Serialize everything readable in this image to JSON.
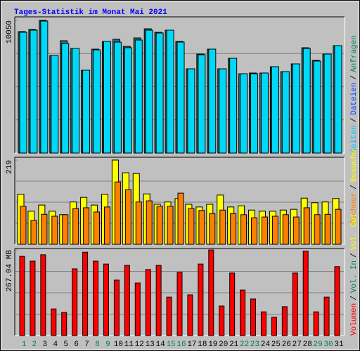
{
  "title": "Tages-Statistik im Monat Mai 2021",
  "legend_separator": "/",
  "chart_data": [
    {
      "type": "bar",
      "ylim": [
        0,
        10050
      ],
      "yticks": [
        10050
      ],
      "legend": [
        {
          "name": "Seiten",
          "color": "#00c0ff"
        },
        {
          "name": "Dateien",
          "color": "#0040ff"
        },
        {
          "name": "Anfragen",
          "color": "#00805c"
        }
      ],
      "series": [
        {
          "color": "#2e6e6e",
          "values": [
            9199,
            9358,
            10050,
            7391,
            8508,
            7923,
            6274,
            7869,
            8454,
            8614,
            8082,
            8720,
            9411,
            9146,
            9305,
            8454,
            6381,
            7497,
            7869,
            6381,
            7178,
            6008,
            6062,
            6062,
            6540,
            6168,
            6753,
            7976,
            7019,
            7497,
            8135
          ]
        },
        {
          "color": "#00d8f8",
          "values": [
            9146,
            9305,
            9996,
            7391,
            8295,
            7923,
            6274,
            7816,
            8454,
            8401,
            7976,
            8560,
            9305,
            9092,
            9305,
            8401,
            6381,
            7444,
            7869,
            6381,
            7178,
            6008,
            6008,
            6062,
            6540,
            6168,
            6753,
            7923,
            6965,
            7497,
            8135
          ]
        }
      ]
    },
    {
      "type": "bar",
      "ylim": [
        0,
        219
      ],
      "yticks": [
        219
      ],
      "legend": [
        {
          "name": "Rechner",
          "color": "#ff8000"
        },
        {
          "name": "Besuche",
          "color": "#ffff00"
        }
      ],
      "series": [
        {
          "color": "#ffff00",
          "values": [
            130,
            86,
            102,
            86,
            77,
            110,
            122,
            102,
            130,
            219,
            186,
            184,
            131,
            104,
            110,
            119,
            104,
            97,
            104,
            128,
            97,
            100,
            89,
            86,
            86,
            89,
            91,
            120,
            108,
            110,
            119
          ]
        },
        {
          "color": "#ff8000",
          "values": [
            99,
            62,
            78,
            73,
            77,
            93,
            95,
            84,
            97,
            162,
            142,
            110,
            113,
            99,
            99,
            133,
            93,
            88,
            80,
            89,
            80,
            77,
            69,
            71,
            73,
            77,
            71,
            95,
            77,
            78,
            91
          ]
        }
      ]
    },
    {
      "type": "bar",
      "ylim": [
        0,
        267.04
      ],
      "yticks": [
        {
          "value": 267.04,
          "label": "267.04 MB"
        }
      ],
      "legend": [
        {
          "name": "Volumen",
          "color": "#ff0000"
        },
        {
          "name": "Vol. In",
          "color": "#00805c"
        },
        {
          "name": "Vol. Out",
          "color": "#ffff00"
        }
      ],
      "categories": [
        "1",
        "2",
        "3",
        "4",
        "5",
        "6",
        "7",
        "8",
        "9",
        "10",
        "11",
        "12",
        "13",
        "14",
        "15",
        "16",
        "17",
        "18",
        "19",
        "20",
        "21",
        "22",
        "23",
        "24",
        "25",
        "26",
        "27",
        "28",
        "29",
        "30",
        "31"
      ],
      "category_colors": [
        "#00805c",
        "#00805c",
        "#000000",
        "#000000",
        "#000000",
        "#000000",
        "#000000",
        "#00805c",
        "#00805c",
        "#000000",
        "#000000",
        "#000000",
        "#000000",
        "#000000",
        "#00805c",
        "#00805c",
        "#000000",
        "#000000",
        "#000000",
        "#000000",
        "#000000",
        "#00805c",
        "#00805c",
        "#000000",
        "#000000",
        "#000000",
        "#000000",
        "#000000",
        "#00805c",
        "#00805c",
        "#000000"
      ],
      "series": [
        {
          "color": "#ff0000",
          "values": [
            247,
            232,
            252,
            83,
            72,
            208,
            260,
            232,
            223,
            173,
            219,
            164,
            206,
            219,
            120,
            197,
            127,
            223,
            267.04,
            92,
            195,
            142,
            114,
            74,
            57,
            90,
            195,
            263,
            74,
            120,
            215
          ]
        }
      ]
    }
  ]
}
